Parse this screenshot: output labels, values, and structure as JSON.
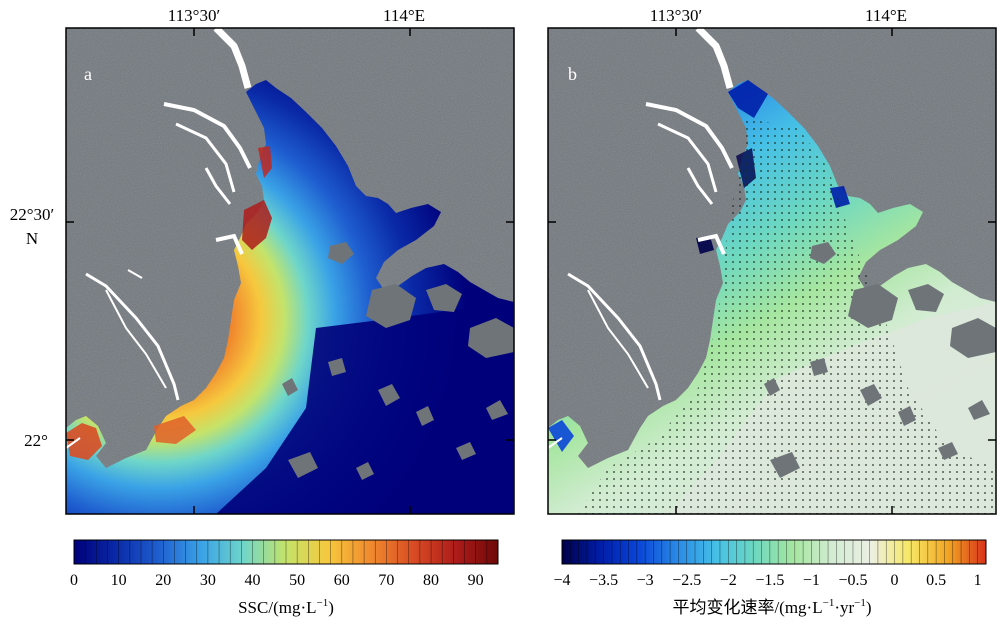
{
  "map_a": {
    "panel_label": "a",
    "lon_ticks": [
      "113°30′",
      "114°E"
    ],
    "lat_ticks": [
      "22°30′",
      "N",
      "22°"
    ],
    "colorbar": {
      "title": "SSC/(mg·L",
      "title_sup": "−1",
      "title_close": ")",
      "ticks": [
        "0",
        "10",
        "20",
        "30",
        "40",
        "50",
        "60",
        "70",
        "80",
        "90"
      ],
      "range": [
        0,
        95
      ],
      "colors": [
        "#00007a",
        "#0a2aa8",
        "#1f5fd0",
        "#3aa2e6",
        "#6fd6c9",
        "#c4e36a",
        "#f6c83e",
        "#f08a2e",
        "#d94c24",
        "#ae1c1a",
        "#6e0808"
      ]
    }
  },
  "map_b": {
    "panel_label": "b",
    "lon_ticks": [
      "113°30′",
      "114°E"
    ],
    "colorbar": {
      "title": "平均变化速率/(mg·L",
      "title_sup1": "−1",
      "title_mid": "·yr",
      "title_sup2": "−1",
      "title_close": ")",
      "ticks": [
        "−4",
        "−3.5",
        "−3",
        "−2.5",
        "−2",
        "−1.5",
        "−1",
        "−0.5",
        "0",
        "0.5",
        "1"
      ],
      "range": [
        -4,
        1.1
      ],
      "colors": [
        "#00004a",
        "#001ea8",
        "#0a46d8",
        "#2a8ae6",
        "#46c0e6",
        "#6ed8c0",
        "#a6e6a0",
        "#d2ecd2",
        "#ecf0e4",
        "#f6e866",
        "#f2a624",
        "#d83218"
      ]
    }
  },
  "colors": {
    "land": "#6f7479",
    "land_dark": "#545a60",
    "river": "#ffffff",
    "frame": "#000000"
  }
}
